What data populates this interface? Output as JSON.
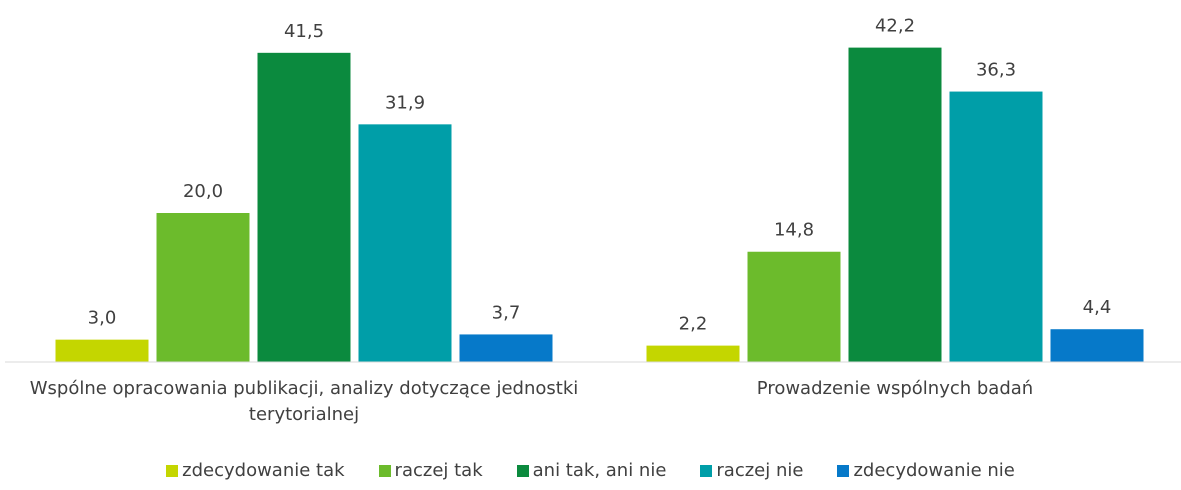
{
  "chart_data": {
    "type": "bar",
    "categories": [
      "Wspólne opracowania publikacji,  analizy dotyczące jednostki terytorialnej",
      "Prowadzenie wspólnych badań"
    ],
    "series": [
      {
        "name": "zdecydowanie tak",
        "color": "#c4d600",
        "values": [
          3.0,
          2.2
        ],
        "value_labels": [
          "3,0",
          "2,2"
        ]
      },
      {
        "name": "raczej tak",
        "color": "#6cbb2c",
        "values": [
          20.0,
          14.8
        ],
        "value_labels": [
          "20,0",
          "14,8"
        ]
      },
      {
        "name": "ani tak, ani nie",
        "color": "#0b8a3e",
        "values": [
          41.5,
          42.2
        ],
        "value_labels": [
          "41,5",
          "42,2"
        ]
      },
      {
        "name": "raczej nie",
        "color": "#009ea8",
        "values": [
          31.9,
          36.3
        ],
        "value_labels": [
          "31,9",
          "36,3"
        ]
      },
      {
        "name": "zdecydowanie nie",
        "color": "#0679c9",
        "values": [
          3.7,
          4.4
        ],
        "value_labels": [
          "3,7",
          "4,4"
        ]
      }
    ],
    "ylim": [
      0,
      45
    ]
  }
}
